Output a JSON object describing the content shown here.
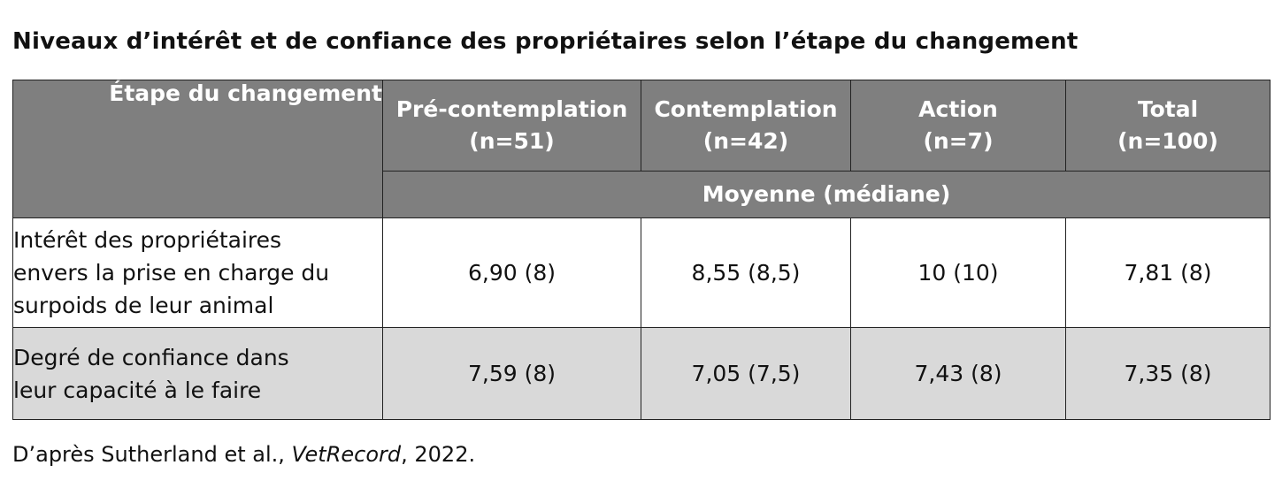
{
  "title": "Niveaux d’intérêt et de confiance des propriétaires selon l’étape du changement",
  "table": {
    "stub_header": "Étape du changement",
    "columns": [
      {
        "label": "Pré-contemplation",
        "n": "(n=51)"
      },
      {
        "label": "Contemplation",
        "n": "(n=42)"
      },
      {
        "label": "Action",
        "n": "(n=7)"
      },
      {
        "label": "Total",
        "n": "(n=100)"
      }
    ],
    "subheader": "Moyenne (médiane)",
    "rows": [
      {
        "label_lines": [
          "Intérêt des propriétaires",
          "envers la prise en charge du",
          "surpoids de leur animal"
        ],
        "values": [
          "6,90 (8)",
          "8,55 (8,5)",
          "10 (10)",
          "7,81 (8)"
        ]
      },
      {
        "label_lines": [
          "Degré de confiance dans",
          "leur capacité à le faire"
        ],
        "values": [
          "7,59 (8)",
          "7,05 (7,5)",
          "7,43 (8)",
          "7,35 (8)"
        ]
      }
    ]
  },
  "source": {
    "prefix": "D’après Sutherland et al., ",
    "journal": "VetRecord",
    "suffix": ", 2022."
  }
}
